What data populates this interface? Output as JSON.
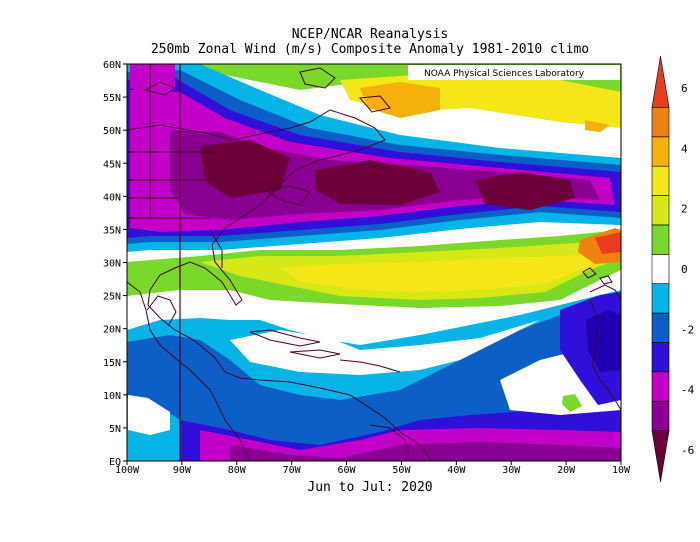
{
  "header": {
    "title": "NCEP/NCAR Reanalysis",
    "subtitle": "250mb Zonal Wind (m/s) Composite Anomaly 1981-2010 climo",
    "period": "Jun to Jul: 2020"
  },
  "credit": "NOAA Physical Sciences Laboratory",
  "map": {
    "region": {
      "lon": [
        -100,
        -10
      ],
      "lat": [
        0,
        60
      ]
    },
    "lat_labels": [
      "EQ",
      "5N",
      "10N",
      "15N",
      "20N",
      "25N",
      "30N",
      "35N",
      "40N",
      "45N",
      "50N",
      "55N",
      "60N"
    ],
    "lon_labels": [
      "100W",
      "90W",
      "80W",
      "70W",
      "60W",
      "50W",
      "40W",
      "30W",
      "20W",
      "10W"
    ]
  },
  "colorbar": {
    "labels": [
      "6",
      "4",
      "2",
      "0",
      "-2",
      "-4",
      "-6"
    ],
    "colors": [
      "#6b003a",
      "#8a0090",
      "#c300c8",
      "#3010d8",
      "#0b5fc6",
      "#06b4e8",
      "#ffffff",
      "#7ad82a",
      "#d6e816",
      "#f5e61a",
      "#f5b00a",
      "#f08214",
      "#e83c1e"
    ]
  },
  "chart_data": {
    "type": "heatmap",
    "title": "250mb Zonal Wind (m/s) Composite Anomaly 1981-2010 climo",
    "period": "Jun to Jul: 2020",
    "units": "m/s",
    "levels": [
      -6,
      -5,
      -4,
      -3,
      -2,
      -1,
      1,
      2,
      3,
      4,
      5,
      6
    ],
    "features": [
      {
        "lon": -78,
        "lat": 44,
        "value": -6
      },
      {
        "lon": -55,
        "lat": 41,
        "value": -6
      },
      {
        "lon": -35,
        "lat": 41,
        "value": -6
      },
      {
        "lon": -45,
        "lat": 55,
        "value": 4
      },
      {
        "lon": -10,
        "lat": 32,
        "value": 5
      },
      {
        "lon": -50,
        "lat": 28,
        "value": 3
      },
      {
        "lon": -10,
        "lat": 18,
        "value": -4
      },
      {
        "lon": -70,
        "lat": 3,
        "value": -5
      },
      {
        "lon": -22,
        "lat": 10,
        "value": 2
      }
    ]
  }
}
